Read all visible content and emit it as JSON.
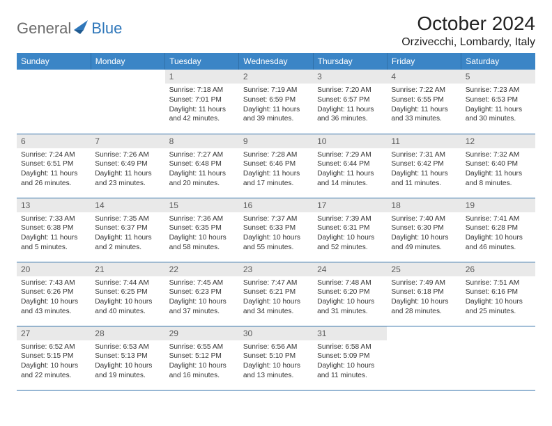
{
  "brand": {
    "part1": "General",
    "part2": "Blue"
  },
  "title": "October 2024",
  "location": "Orzivecchi, Lombardy, Italy",
  "colors": {
    "header_bg": "#3b85c6",
    "header_border": "#2f6fa8",
    "daynum_bg": "#e9e9e9",
    "text": "#333333",
    "brand_gray": "#6b6b6b",
    "brand_blue": "#2f77ba"
  },
  "days": [
    "Sunday",
    "Monday",
    "Tuesday",
    "Wednesday",
    "Thursday",
    "Friday",
    "Saturday"
  ],
  "weeks": [
    [
      {
        "n": "",
        "lines": []
      },
      {
        "n": "",
        "lines": []
      },
      {
        "n": "1",
        "lines": [
          "Sunrise: 7:18 AM",
          "Sunset: 7:01 PM",
          "Daylight: 11 hours and 42 minutes."
        ]
      },
      {
        "n": "2",
        "lines": [
          "Sunrise: 7:19 AM",
          "Sunset: 6:59 PM",
          "Daylight: 11 hours and 39 minutes."
        ]
      },
      {
        "n": "3",
        "lines": [
          "Sunrise: 7:20 AM",
          "Sunset: 6:57 PM",
          "Daylight: 11 hours and 36 minutes."
        ]
      },
      {
        "n": "4",
        "lines": [
          "Sunrise: 7:22 AM",
          "Sunset: 6:55 PM",
          "Daylight: 11 hours and 33 minutes."
        ]
      },
      {
        "n": "5",
        "lines": [
          "Sunrise: 7:23 AM",
          "Sunset: 6:53 PM",
          "Daylight: 11 hours and 30 minutes."
        ]
      }
    ],
    [
      {
        "n": "6",
        "lines": [
          "Sunrise: 7:24 AM",
          "Sunset: 6:51 PM",
          "Daylight: 11 hours and 26 minutes."
        ]
      },
      {
        "n": "7",
        "lines": [
          "Sunrise: 7:26 AM",
          "Sunset: 6:49 PM",
          "Daylight: 11 hours and 23 minutes."
        ]
      },
      {
        "n": "8",
        "lines": [
          "Sunrise: 7:27 AM",
          "Sunset: 6:48 PM",
          "Daylight: 11 hours and 20 minutes."
        ]
      },
      {
        "n": "9",
        "lines": [
          "Sunrise: 7:28 AM",
          "Sunset: 6:46 PM",
          "Daylight: 11 hours and 17 minutes."
        ]
      },
      {
        "n": "10",
        "lines": [
          "Sunrise: 7:29 AM",
          "Sunset: 6:44 PM",
          "Daylight: 11 hours and 14 minutes."
        ]
      },
      {
        "n": "11",
        "lines": [
          "Sunrise: 7:31 AM",
          "Sunset: 6:42 PM",
          "Daylight: 11 hours and 11 minutes."
        ]
      },
      {
        "n": "12",
        "lines": [
          "Sunrise: 7:32 AM",
          "Sunset: 6:40 PM",
          "Daylight: 11 hours and 8 minutes."
        ]
      }
    ],
    [
      {
        "n": "13",
        "lines": [
          "Sunrise: 7:33 AM",
          "Sunset: 6:38 PM",
          "Daylight: 11 hours and 5 minutes."
        ]
      },
      {
        "n": "14",
        "lines": [
          "Sunrise: 7:35 AM",
          "Sunset: 6:37 PM",
          "Daylight: 11 hours and 2 minutes."
        ]
      },
      {
        "n": "15",
        "lines": [
          "Sunrise: 7:36 AM",
          "Sunset: 6:35 PM",
          "Daylight: 10 hours and 58 minutes."
        ]
      },
      {
        "n": "16",
        "lines": [
          "Sunrise: 7:37 AM",
          "Sunset: 6:33 PM",
          "Daylight: 10 hours and 55 minutes."
        ]
      },
      {
        "n": "17",
        "lines": [
          "Sunrise: 7:39 AM",
          "Sunset: 6:31 PM",
          "Daylight: 10 hours and 52 minutes."
        ]
      },
      {
        "n": "18",
        "lines": [
          "Sunrise: 7:40 AM",
          "Sunset: 6:30 PM",
          "Daylight: 10 hours and 49 minutes."
        ]
      },
      {
        "n": "19",
        "lines": [
          "Sunrise: 7:41 AM",
          "Sunset: 6:28 PM",
          "Daylight: 10 hours and 46 minutes."
        ]
      }
    ],
    [
      {
        "n": "20",
        "lines": [
          "Sunrise: 7:43 AM",
          "Sunset: 6:26 PM",
          "Daylight: 10 hours and 43 minutes."
        ]
      },
      {
        "n": "21",
        "lines": [
          "Sunrise: 7:44 AM",
          "Sunset: 6:25 PM",
          "Daylight: 10 hours and 40 minutes."
        ]
      },
      {
        "n": "22",
        "lines": [
          "Sunrise: 7:45 AM",
          "Sunset: 6:23 PM",
          "Daylight: 10 hours and 37 minutes."
        ]
      },
      {
        "n": "23",
        "lines": [
          "Sunrise: 7:47 AM",
          "Sunset: 6:21 PM",
          "Daylight: 10 hours and 34 minutes."
        ]
      },
      {
        "n": "24",
        "lines": [
          "Sunrise: 7:48 AM",
          "Sunset: 6:20 PM",
          "Daylight: 10 hours and 31 minutes."
        ]
      },
      {
        "n": "25",
        "lines": [
          "Sunrise: 7:49 AM",
          "Sunset: 6:18 PM",
          "Daylight: 10 hours and 28 minutes."
        ]
      },
      {
        "n": "26",
        "lines": [
          "Sunrise: 7:51 AM",
          "Sunset: 6:16 PM",
          "Daylight: 10 hours and 25 minutes."
        ]
      }
    ],
    [
      {
        "n": "27",
        "lines": [
          "Sunrise: 6:52 AM",
          "Sunset: 5:15 PM",
          "Daylight: 10 hours and 22 minutes."
        ]
      },
      {
        "n": "28",
        "lines": [
          "Sunrise: 6:53 AM",
          "Sunset: 5:13 PM",
          "Daylight: 10 hours and 19 minutes."
        ]
      },
      {
        "n": "29",
        "lines": [
          "Sunrise: 6:55 AM",
          "Sunset: 5:12 PM",
          "Daylight: 10 hours and 16 minutes."
        ]
      },
      {
        "n": "30",
        "lines": [
          "Sunrise: 6:56 AM",
          "Sunset: 5:10 PM",
          "Daylight: 10 hours and 13 minutes."
        ]
      },
      {
        "n": "31",
        "lines": [
          "Sunrise: 6:58 AM",
          "Sunset: 5:09 PM",
          "Daylight: 10 hours and 11 minutes."
        ]
      },
      {
        "n": "",
        "lines": []
      },
      {
        "n": "",
        "lines": []
      }
    ]
  ]
}
